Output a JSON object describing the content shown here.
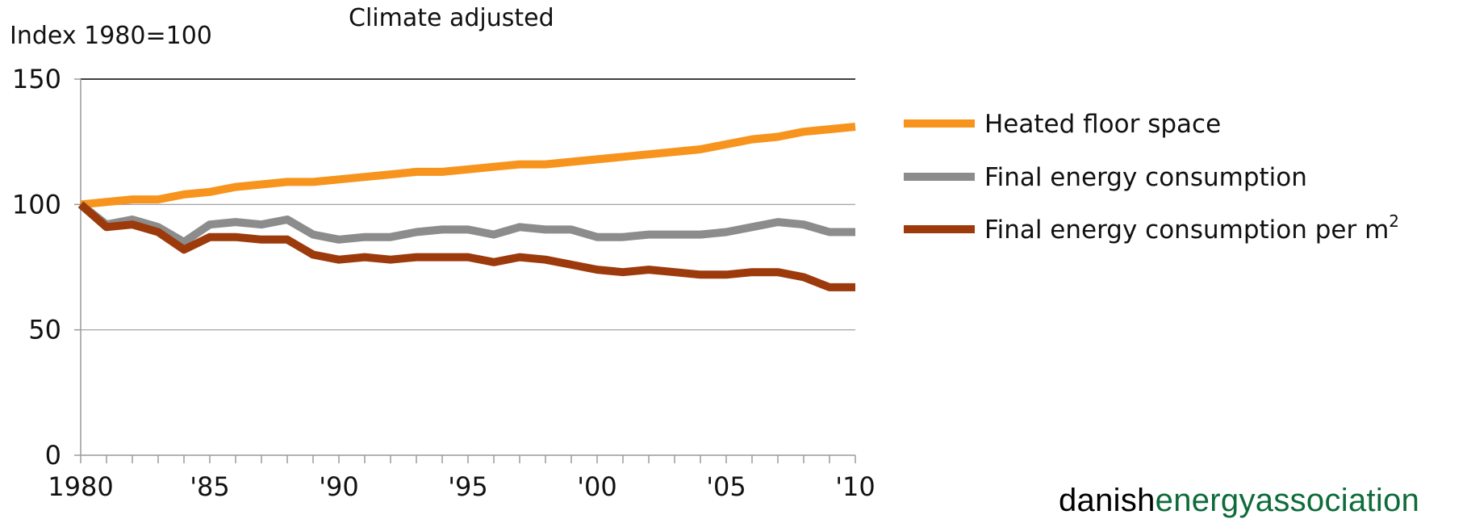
{
  "chart_data": {
    "type": "line",
    "title": "Climate adjusted",
    "ylabel": "Index 1980=100",
    "xlabel": "",
    "xlim": [
      1980,
      2010
    ],
    "ylim": [
      0,
      150
    ],
    "grid": true,
    "legend_position": "right",
    "x": [
      1980,
      1981,
      1982,
      1983,
      1984,
      1985,
      1986,
      1987,
      1988,
      1989,
      1990,
      1991,
      1992,
      1993,
      1994,
      1995,
      1996,
      1997,
      1998,
      1999,
      2000,
      2001,
      2002,
      2003,
      2004,
      2005,
      2006,
      2007,
      2008,
      2009,
      2010
    ],
    "x_ticks": [
      {
        "value": 1980,
        "label": "1980"
      },
      {
        "value": 1985,
        "label": "'85"
      },
      {
        "value": 1990,
        "label": "'90"
      },
      {
        "value": 1995,
        "label": "'95"
      },
      {
        "value": 2000,
        "label": "'00"
      },
      {
        "value": 2005,
        "label": "'05"
      },
      {
        "value": 2010,
        "label": "'10"
      }
    ],
    "y_ticks": [
      {
        "value": 0,
        "label": "0"
      },
      {
        "value": 50,
        "label": "50"
      },
      {
        "value": 100,
        "label": "100"
      },
      {
        "value": 150,
        "label": "150"
      }
    ],
    "series": [
      {
        "name": "Heated floor space",
        "color": "#F7941D",
        "values": [
          100,
          101,
          102,
          102,
          104,
          105,
          107,
          108,
          109,
          109,
          110,
          111,
          112,
          113,
          113,
          114,
          115,
          116,
          116,
          117,
          118,
          119,
          120,
          121,
          122,
          124,
          126,
          127,
          129,
          130,
          131
        ]
      },
      {
        "name": "Final energy consumption",
        "color": "#8C8C8C",
        "values": [
          100,
          92,
          94,
          91,
          85,
          92,
          93,
          92,
          94,
          88,
          86,
          87,
          87,
          89,
          90,
          90,
          88,
          91,
          90,
          90,
          87,
          87,
          88,
          88,
          88,
          89,
          91,
          93,
          92,
          89,
          89
        ]
      },
      {
        "name": "Final energy consumption per m",
        "name_superscript": "2",
        "color": "#9C3A0C",
        "values": [
          100,
          91,
          92,
          89,
          82,
          87,
          87,
          86,
          86,
          80,
          78,
          79,
          78,
          79,
          79,
          79,
          77,
          79,
          78,
          76,
          74,
          73,
          74,
          73,
          72,
          72,
          73,
          73,
          71,
          67,
          67
        ]
      }
    ]
  },
  "footer": {
    "part1": "danish",
    "part2": "energy",
    "part3": "association",
    "color1": "#000000",
    "color2": "#0E6B3A"
  }
}
